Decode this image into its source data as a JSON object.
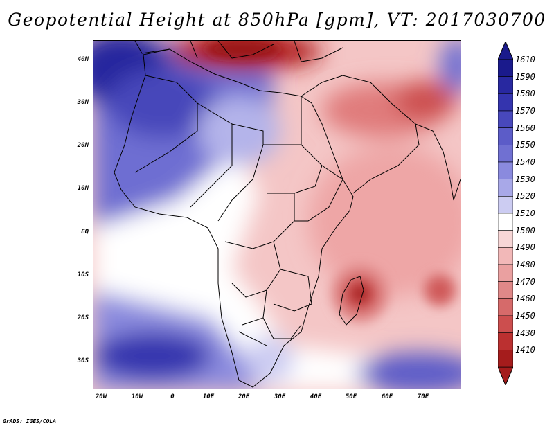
{
  "title": "Geopotential Height at 850hPa [gpm], VT: 2017030700",
  "footer": "GrADS: IGES/COLA",
  "map": {
    "variable": "Geopotential Height",
    "level": "850hPa",
    "units": "gpm",
    "valid_time": "2017030700",
    "lat_labels": [
      "40N",
      "30N",
      "20N",
      "10N",
      "EQ",
      "10S",
      "20S",
      "30S"
    ],
    "lon_labels": [
      "20W",
      "10W",
      "0",
      "10E",
      "20E",
      "30E",
      "40E",
      "50E",
      "60E",
      "70E"
    ]
  },
  "colorbar": {
    "levels": [
      "1610",
      "1590",
      "1580",
      "1570",
      "1560",
      "1550",
      "1540",
      "1530",
      "1520",
      "1510",
      "1500",
      "1490",
      "1480",
      "1470",
      "1460",
      "1450",
      "1430",
      "1410"
    ],
    "colors": [
      "#1a1a8c",
      "#2828a0",
      "#3434ae",
      "#4848bc",
      "#5c5cc8",
      "#7070d2",
      "#8a8ade",
      "#a8a8e8",
      "#ccccf2",
      "#ffffff",
      "#f7d6d6",
      "#f2b8b8",
      "#eaa0a0",
      "#e08888",
      "#d66a6a",
      "#cc4e4e",
      "#bb3030",
      "#a51c1c"
    ]
  }
}
